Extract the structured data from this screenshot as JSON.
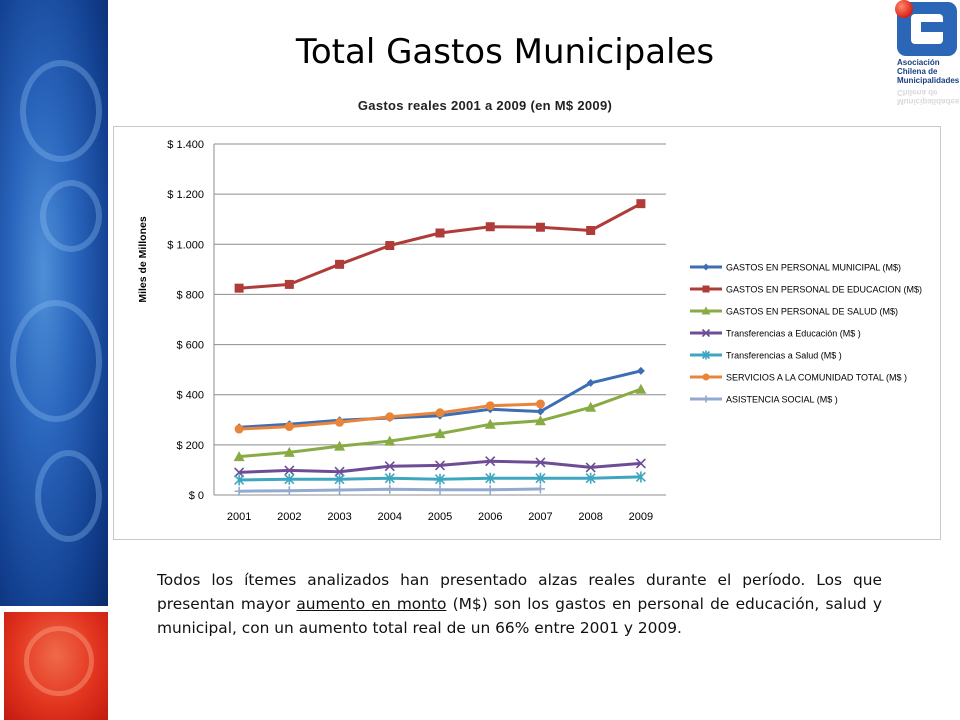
{
  "slide": {
    "title": "Total Gastos Municipales",
    "paragraph": {
      "before": "Todos los ítemes analizados han presentado alzas reales durante el período. Los que presentan mayor ",
      "underlined": "aumento en monto",
      "after": " (M$) son los gastos en personal de educación, salud y municipal, con un aumento total real de un 66% entre 2001 y 2009."
    }
  },
  "logo": {
    "line1": "Asociación",
    "line2": "Chilena de",
    "line3": "Municipalidades"
  },
  "colors": {
    "sidebar_blue": "#1f56a8",
    "sidebar_red": "#e2351f",
    "gridline": "#8c8c8c"
  },
  "chart_data": {
    "type": "line",
    "title": "Gastos reales 2001 a 2009 (en M$ 2009)",
    "xlabel": "",
    "ylabel": "Miles de Millones",
    "x": [
      "2001",
      "2002",
      "2003",
      "2004",
      "2005",
      "2006",
      "2007",
      "2008",
      "2009"
    ],
    "ylim": [
      0,
      1400
    ],
    "yticks": [
      0,
      200,
      400,
      600,
      800,
      1000,
      1200,
      1400
    ],
    "ytick_labels": [
      "$ 0",
      "$ 200",
      "$ 400",
      "$ 600",
      "$ 800",
      "$ 1.000",
      "$ 1.200",
      "$ 1.400"
    ],
    "grid": "horizontal",
    "legend_position": "right",
    "series": [
      {
        "name": "GASTOS EN PERSONAL MUNICIPAL (M$)",
        "color": "#3d6eb4",
        "marker": "diamond",
        "values": [
          270,
          282,
          298,
          307,
          316,
          342,
          333,
          447,
          495
        ]
      },
      {
        "name": "GASTOS EN PERSONAL DE EDUCACION (M$)",
        "color": "#b03c39",
        "marker": "square",
        "values": [
          825,
          840,
          920,
          995,
          1045,
          1070,
          1068,
          1055,
          1162
        ]
      },
      {
        "name": "GASTOS EN PERSONAL DE SALUD (M$)",
        "color": "#89ab45",
        "marker": "triangle",
        "values": [
          153,
          170,
          195,
          215,
          245,
          282,
          296,
          350,
          422
        ]
      },
      {
        "name": "Transferencias a Educación (M$ )",
        "color": "#6d4e96",
        "marker": "x",
        "values": [
          90,
          98,
          93,
          115,
          118,
          135,
          130,
          110,
          126
        ]
      },
      {
        "name": "Transferencias a Salud (M$ )",
        "color": "#3fa6c0",
        "marker": "star",
        "values": [
          60,
          63,
          63,
          67,
          63,
          67,
          67,
          67,
          72
        ]
      },
      {
        "name": "SERVICIOS A LA COMUNIDAD TOTAL (M$ )",
        "color": "#e8853a",
        "marker": "circle",
        "values": [
          263,
          273,
          290,
          312,
          328,
          356,
          363,
          null,
          null
        ]
      },
      {
        "name": "ASISTENCIA SOCIAL (M$ )",
        "color": "#93a9cf",
        "marker": "plus",
        "values": [
          15,
          17,
          20,
          23,
          21,
          21,
          24,
          null,
          null
        ]
      }
    ]
  }
}
